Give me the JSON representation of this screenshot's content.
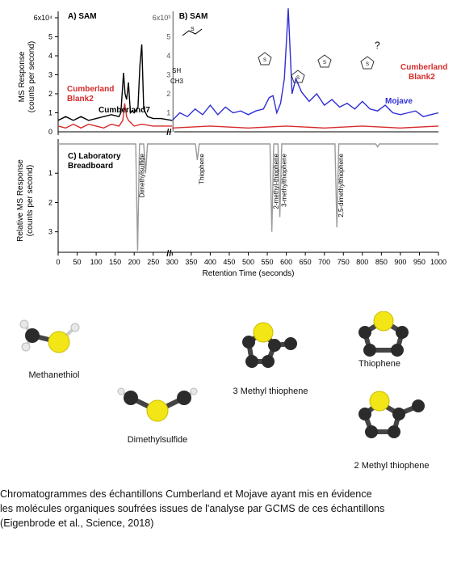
{
  "chart_data": [
    {
      "type": "line",
      "panel": "A) SAM",
      "ylabel": "MS Response\n(counts per second)",
      "y_multiplier": "6x10⁴",
      "yticks": [
        "1",
        "2",
        "3",
        "4",
        "5",
        "6x10⁴"
      ],
      "ylim": [
        0,
        6
      ],
      "x_range": [
        0,
        300
      ],
      "series": [
        {
          "name": "Cumberland7",
          "color": "#000000",
          "x": [
            0,
            20,
            40,
            60,
            80,
            100,
            120,
            140,
            160,
            165,
            172,
            176,
            180,
            185,
            190,
            195,
            200,
            210,
            215,
            220,
            225,
            235,
            250,
            270,
            300
          ],
          "y": [
            0.6,
            0.8,
            0.6,
            0.8,
            0.6,
            0.7,
            0.8,
            0.9,
            0.8,
            1.0,
            3.1,
            2.0,
            1.7,
            2.6,
            1.0,
            1.1,
            1.0,
            1.3,
            3.5,
            4.6,
            1.2,
            0.8,
            0.7,
            0.7,
            0.6
          ]
        },
        {
          "name": "Cumberland Blank2",
          "color": "#d62b2b",
          "x": [
            0,
            20,
            40,
            60,
            80,
            100,
            120,
            140,
            160,
            170,
            175,
            180,
            185,
            190,
            200,
            220,
            250,
            300
          ],
          "y": [
            0.3,
            0.2,
            0.4,
            0.2,
            0.4,
            0.3,
            0.2,
            0.4,
            0.3,
            0.6,
            1.5,
            0.8,
            0.6,
            0.5,
            0.3,
            0.4,
            0.3,
            0.3
          ]
        }
      ],
      "annotations": [
        "SH",
        "CH3"
      ]
    },
    {
      "type": "line",
      "panel": "B) SAM",
      "y_multiplier": "6x10³",
      "yticks": [
        "1",
        "2",
        "3",
        "4",
        "5",
        "6x10³"
      ],
      "ylim": [
        0,
        6
      ],
      "x_range": [
        300,
        1000
      ],
      "series": [
        {
          "name": "Mojave",
          "color": "#2f2fd6",
          "x": [
            300,
            320,
            340,
            360,
            380,
            400,
            420,
            440,
            460,
            480,
            500,
            520,
            540,
            555,
            565,
            575,
            585,
            595,
            605,
            615,
            625,
            640,
            660,
            680,
            700,
            720,
            740,
            760,
            780,
            800,
            820,
            840,
            860,
            880,
            900,
            920,
            940,
            960,
            980,
            1000
          ],
          "y": [
            0.6,
            1.0,
            0.8,
            1.2,
            0.9,
            1.4,
            0.9,
            1.3,
            1.0,
            1.1,
            0.9,
            1.1,
            1.2,
            1.8,
            1.9,
            1.0,
            1.5,
            2.8,
            6.5,
            2.0,
            2.8,
            2.1,
            1.6,
            2.0,
            1.4,
            1.7,
            1.3,
            1.5,
            1.2,
            1.6,
            1.2,
            1.1,
            1.4,
            1.0,
            0.9,
            1.0,
            1.1,
            0.8,
            0.9,
            1.0
          ]
        },
        {
          "name": "Cumberland Blank2",
          "color": "#d62b2b",
          "x": [
            300,
            400,
            500,
            600,
            700,
            800,
            900,
            1000
          ],
          "y": [
            0.2,
            0.3,
            0.2,
            0.3,
            0.2,
            0.3,
            0.2,
            0.3
          ]
        }
      ],
      "annotations": [
        "?"
      ]
    },
    {
      "type": "line",
      "panel": "C) Laboratory Breadboard",
      "ylabel": "Relative MS Response\n(counts per second)",
      "xlabel": "Retention Time (seconds)",
      "xticks": [
        0,
        50,
        100,
        150,
        200,
        250,
        300,
        350,
        400,
        450,
        500,
        550,
        600,
        650,
        700,
        750,
        800,
        850,
        900,
        950,
        1000
      ],
      "yticks": [
        1,
        2,
        3
      ],
      "ylim": [
        0,
        3.7
      ],
      "x_range": [
        0,
        1000
      ],
      "series": [
        {
          "name": "",
          "color": "#9a9a9a",
          "peaks": [
            {
              "x": 209,
              "y": 3.65,
              "label": "Dimethylsulfide"
            },
            {
              "x": 230,
              "y": 1.0,
              "label": ""
            },
            {
              "x": 366,
              "y": 0.55,
              "label": "Thiophene"
            },
            {
              "x": 562,
              "y": 3.0,
              "label": "2-methyl-thiophene"
            },
            {
              "x": 583,
              "y": 2.5,
              "label": "3-methylthiophene"
            },
            {
              "x": 733,
              "y": 2.85,
              "label": "2,5-dimethylthiophene"
            },
            {
              "x": 840,
              "y": 0.1,
              "label": ""
            }
          ]
        }
      ]
    }
  ],
  "molecules": [
    {
      "name": "Methanethiol"
    },
    {
      "name": "Dimethylsulfide"
    },
    {
      "name": "3 Methyl thiophene"
    },
    {
      "name": "Thiophene"
    },
    {
      "name": "2 Methyl thiophene"
    }
  ],
  "legend_labels": {
    "cumberland7": "Cumberland7",
    "blank_a_line1": "Cumberland",
    "blank_a_line2": "Blank2",
    "mojave": "Mojave",
    "blank_b_line1": "Cumberland",
    "blank_b_line2": "Blank2"
  },
  "caption": [
    "Chromatogrammes des échantillons Cumberland et Mojave  ayant mis en évidence",
    " les molécules organiques soufrées issues de l'analyse par GCMS de ces échantillons",
    "(Eigenbrode et al., Science, 2018)"
  ]
}
